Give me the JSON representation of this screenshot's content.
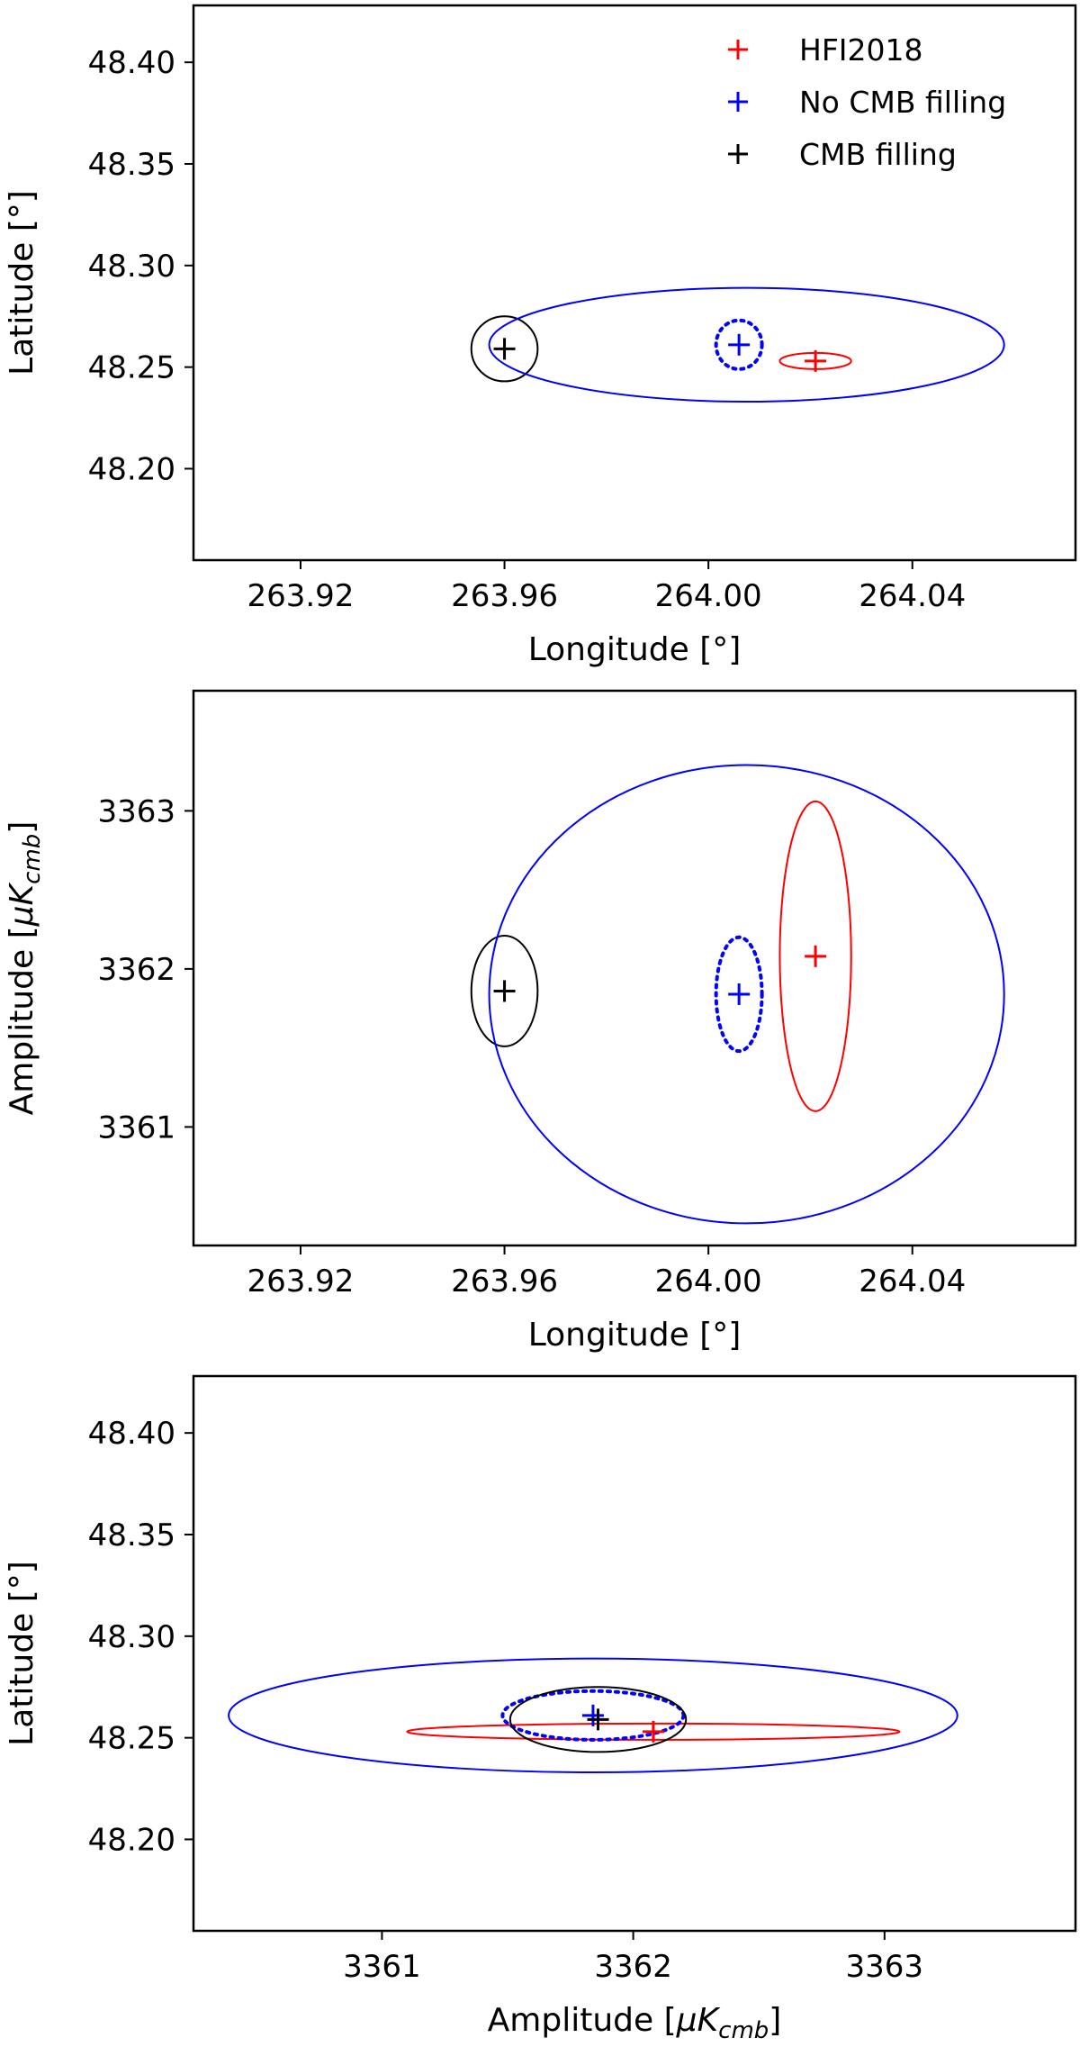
{
  "chart_data": [
    {
      "type": "scatter",
      "xlabel": "Longitude [°]",
      "ylabel": "Latitude [°]",
      "xlim": [
        263.899,
        264.072
      ],
      "ylim": [
        48.155,
        48.428
      ],
      "xticks": [
        263.92,
        263.96,
        264.0,
        264.04
      ],
      "xtick_labels": [
        "263.92",
        "263.96",
        "264.00",
        "264.04"
      ],
      "yticks": [
        48.2,
        48.25,
        48.3,
        48.35,
        48.4
      ],
      "ytick_labels": [
        "48.20",
        "48.25",
        "48.30",
        "48.35",
        "48.40"
      ],
      "legend": {
        "placement": "top-right",
        "entries": [
          {
            "label": "HFI2018",
            "color": "#ff0000"
          },
          {
            "label": "No CMB filling",
            "color": "#0000ff"
          },
          {
            "label": "CMB filling",
            "color": "#000000"
          }
        ]
      },
      "series": [
        {
          "name": "HFI2018",
          "color": "#ff0000",
          "x": 264.021,
          "y": 48.253,
          "ellipse": {
            "rx": 0.007,
            "ry": 0.004,
            "style": "solid"
          }
        },
        {
          "name": "No CMB filling",
          "color": "#0000ff",
          "x": 264.006,
          "y": 48.261,
          "ellipse": {
            "rx": 0.0045,
            "ry": 0.012,
            "style": "dotted"
          }
        },
        {
          "name": "CMB filling",
          "color": "#000000",
          "x": 263.96,
          "y": 48.259,
          "ellipse": {
            "rx": 0.0065,
            "ry": 0.016,
            "style": "solid"
          }
        },
        {
          "color": "#0000ff",
          "x": 264.0075,
          "y": 48.261,
          "ellipse": {
            "rx": 0.0505,
            "ry": 0.028,
            "style": "solid"
          }
        }
      ]
    },
    {
      "type": "scatter",
      "xlabel": "Longitude [°]",
      "ylabel": "Amplitude [μK_cmb]",
      "xlim": [
        263.899,
        264.072
      ],
      "ylim": [
        3360.25,
        3363.76
      ],
      "xticks": [
        263.92,
        263.96,
        264.0,
        264.04
      ],
      "xtick_labels": [
        "263.92",
        "263.96",
        "264.00",
        "264.04"
      ],
      "yticks": [
        3361,
        3362,
        3363
      ],
      "ytick_labels": [
        "3361",
        "3362",
        "3363"
      ],
      "series": [
        {
          "name": "HFI2018",
          "color": "#ff0000",
          "x": 264.021,
          "y": 3362.08,
          "ellipse": {
            "rx": 0.007,
            "ry": 0.98,
            "style": "solid"
          }
        },
        {
          "name": "No CMB filling",
          "color": "#0000ff",
          "x": 264.006,
          "y": 3361.84,
          "ellipse": {
            "rx": 0.0045,
            "ry": 0.36,
            "style": "dotted"
          }
        },
        {
          "name": "CMB filling",
          "color": "#000000",
          "x": 263.96,
          "y": 3361.86,
          "ellipse": {
            "rx": 0.0065,
            "ry": 0.35,
            "style": "solid"
          }
        },
        {
          "color": "#0000ff",
          "x": 264.0075,
          "y": 3361.84,
          "ellipse": {
            "rx": 0.0505,
            "ry": 1.45,
            "style": "solid"
          }
        }
      ]
    },
    {
      "type": "scatter",
      "xlabel": "Amplitude [μK_cmb]",
      "ylabel": "Latitude [°]",
      "xlim": [
        3360.25,
        3363.76
      ],
      "ylim": [
        48.155,
        48.428
      ],
      "xticks": [
        3361,
        3362,
        3363
      ],
      "xtick_labels": [
        "3361",
        "3362",
        "3363"
      ],
      "yticks": [
        48.2,
        48.25,
        48.3,
        48.35,
        48.4
      ],
      "ytick_labels": [
        "48.20",
        "48.25",
        "48.30",
        "48.35",
        "48.40"
      ],
      "series": [
        {
          "name": "HFI2018",
          "color": "#ff0000",
          "x": 3362.08,
          "y": 48.253,
          "ellipse": {
            "rx": 0.98,
            "ry": 0.004,
            "style": "solid"
          }
        },
        {
          "name": "No CMB filling",
          "color": "#0000ff",
          "x": 3361.84,
          "y": 48.261,
          "ellipse": {
            "rx": 0.36,
            "ry": 0.012,
            "style": "dotted"
          }
        },
        {
          "name": "CMB filling",
          "color": "#000000",
          "x": 3361.86,
          "y": 48.259,
          "ellipse": {
            "rx": 0.35,
            "ry": 0.016,
            "style": "solid"
          }
        },
        {
          "color": "#0000ff",
          "x": 3361.84,
          "y": 48.261,
          "ellipse": {
            "rx": 1.45,
            "ry": 0.028,
            "style": "solid"
          }
        }
      ]
    }
  ]
}
